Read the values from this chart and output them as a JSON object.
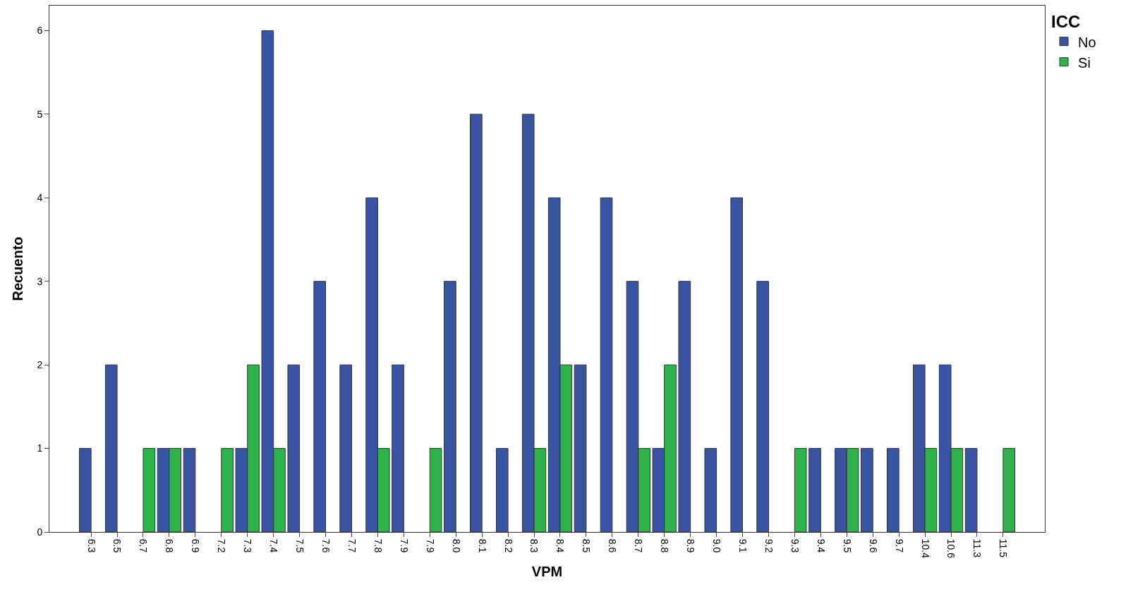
{
  "chart_data": {
    "type": "bar",
    "xlabel": "VPM",
    "ylabel": "Recuento",
    "legend_title": "ICC",
    "legend": "top right",
    "grid": false,
    "categories": [
      "6.3",
      "6.5",
      "6.7",
      "6.8",
      "6.9",
      "7.2",
      "7.3",
      "7.4",
      "7.5",
      "7.6",
      "7.7",
      "7.8",
      "7.9",
      "7.9",
      "8.0",
      "8.1",
      "8.2",
      "8.3",
      "8.4",
      "8.5",
      "8.6",
      "8.7",
      "8.8",
      "8.9",
      "9.0",
      "9.1",
      "9.2",
      "9.3",
      "9.4",
      "9.5",
      "9.6",
      "9.7",
      "10.4",
      "10.6",
      "11.3",
      "11.5"
    ],
    "series": [
      {
        "name": "No",
        "color": "#3a54a4",
        "values": [
          1,
          2,
          null,
          1,
          1,
          null,
          1,
          6,
          2,
          3,
          2,
          4,
          2,
          null,
          3,
          5,
          1,
          5,
          4,
          2,
          4,
          3,
          1,
          3,
          1,
          4,
          3,
          null,
          1,
          1,
          1,
          1,
          2,
          2,
          1,
          null
        ]
      },
      {
        "name": "Si",
        "color": "#2db34a",
        "values": [
          null,
          null,
          1,
          1,
          null,
          1,
          2,
          1,
          null,
          null,
          null,
          1,
          null,
          1,
          null,
          null,
          null,
          1,
          2,
          null,
          null,
          1,
          2,
          null,
          null,
          null,
          null,
          1,
          null,
          1,
          null,
          null,
          1,
          1,
          null,
          1
        ]
      }
    ],
    "ylim": [
      0,
      6.3
    ],
    "yticks": [
      0,
      1,
      2,
      3,
      4,
      5,
      6
    ]
  }
}
